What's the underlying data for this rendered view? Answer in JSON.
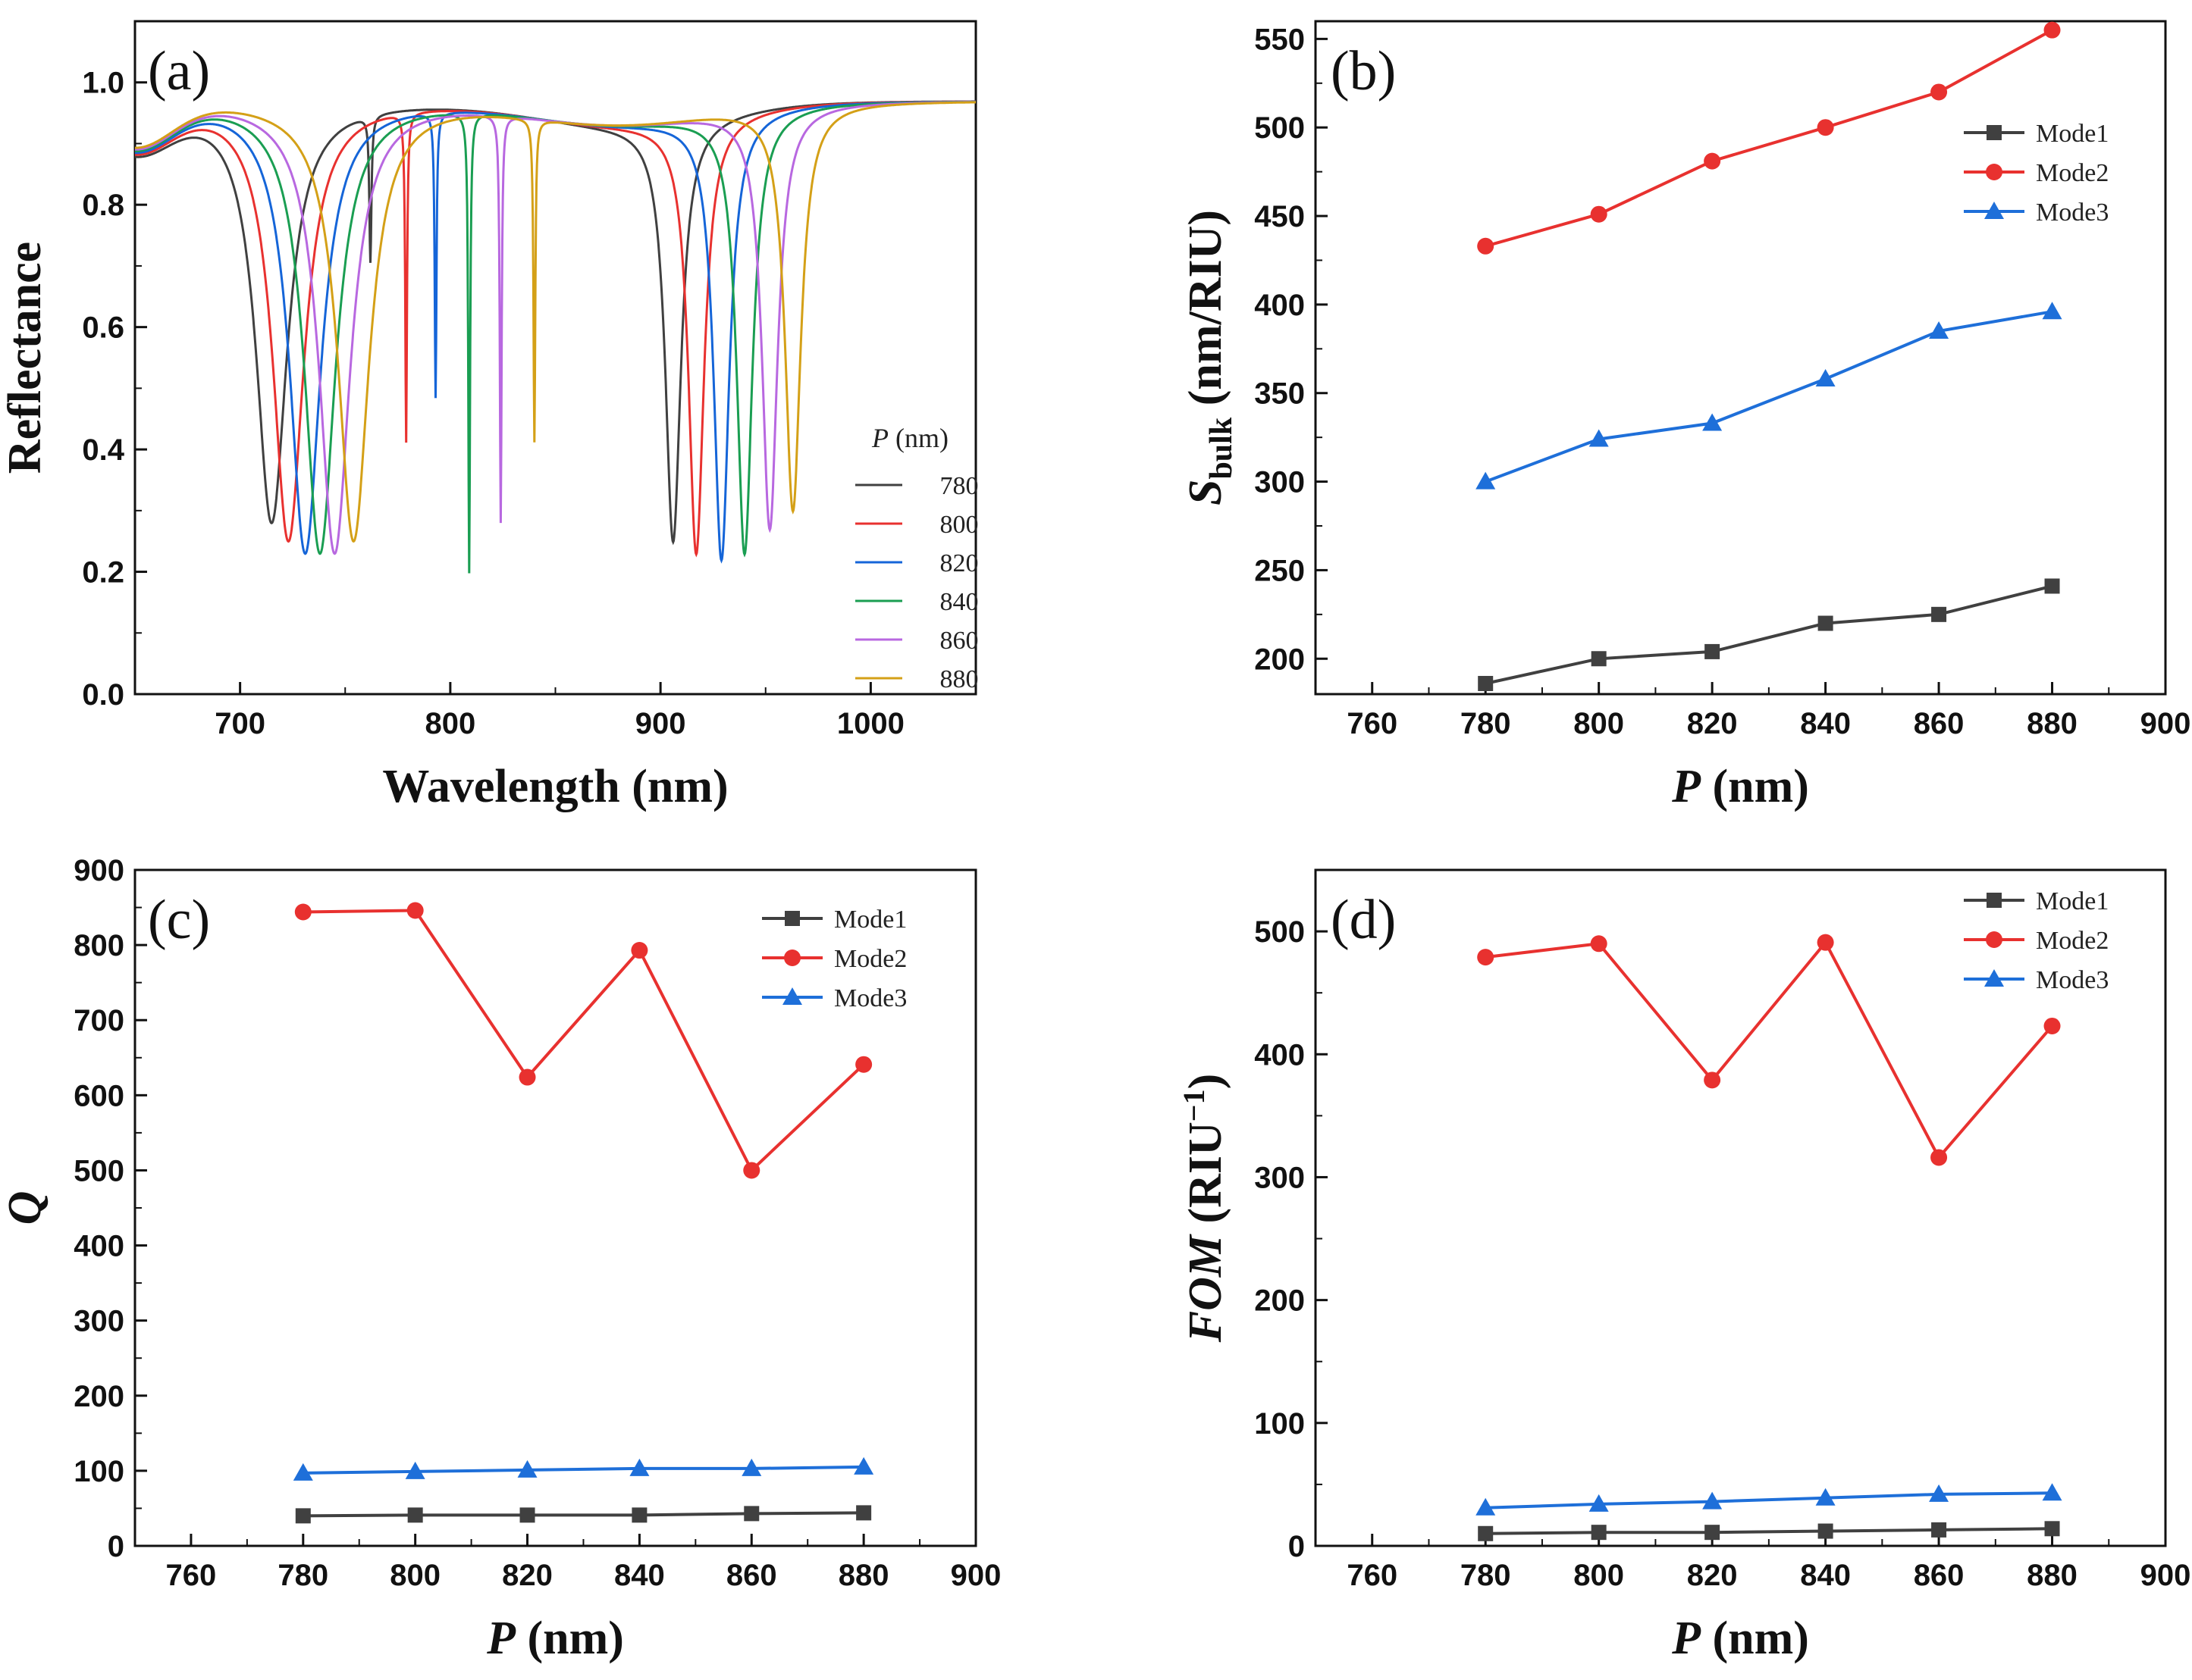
{
  "colors": {
    "s780": "#404040",
    "s800": "#e8312f",
    "s820": "#1565d8",
    "s840": "#1a9e52",
    "s860": "#b868e0",
    "s880": "#d4a017",
    "mode1": "#404040",
    "mode2": "#e8312f",
    "mode3": "#1e6fd9"
  },
  "chart_data": [
    {
      "panel": "(a)",
      "type": "line",
      "xlabel": "Wavelength (nm)",
      "ylabel": "Reflectance",
      "xlim": [
        650,
        1050
      ],
      "ylim": [
        0.0,
        1.1
      ],
      "xticks": [
        "700",
        "800",
        "900",
        "1000"
      ],
      "yticks": [
        "0.0",
        "0.2",
        "0.4",
        "0.6",
        "0.8",
        "1.0"
      ],
      "legend_title_italic": "P",
      "legend_title_rest": " (nm)",
      "series": [
        {
          "name": "780",
          "color_key": "s780",
          "dips": [
            [
              715,
              0.28,
              9
            ],
            [
              762,
              0.73,
              0.6
            ],
            [
              906,
              0.25,
              4.5
            ]
          ]
        },
        {
          "name": "800",
          "color_key": "s800",
          "dips": [
            [
              723,
              0.25,
              9
            ],
            [
              779,
              0.43,
              0.5
            ],
            [
              917,
              0.23,
              4.5
            ]
          ]
        },
        {
          "name": "820",
          "color_key": "s820",
          "dips": [
            [
              731,
              0.23,
              9
            ],
            [
              793,
              0.5,
              0.5
            ],
            [
              929,
              0.22,
              4.5
            ]
          ]
        },
        {
          "name": "840",
          "color_key": "s840",
          "dips": [
            [
              738,
              0.23,
              9
            ],
            [
              809,
              0.21,
              0.5
            ],
            [
              940,
              0.23,
              4.5
            ]
          ]
        },
        {
          "name": "860",
          "color_key": "s860",
          "dips": [
            [
              745,
              0.23,
              9
            ],
            [
              824,
              0.29,
              0.5
            ],
            [
              952,
              0.27,
              4.5
            ]
          ]
        },
        {
          "name": "880",
          "color_key": "s880",
          "dips": [
            [
              754,
              0.25,
              9
            ],
            [
              840,
              0.42,
              0.5
            ],
            [
              963,
              0.3,
              4.5
            ]
          ]
        }
      ]
    },
    {
      "panel": "(b)",
      "type": "line",
      "xlabel": "P (nm)",
      "ylabel": "Sbulk (nm/RIU)",
      "ylabel_main": "S",
      "ylabel_sub": "bulk",
      "ylabel_rest": " (nm/RIU)",
      "xlim": [
        750,
        900
      ],
      "ylim": [
        180,
        560
      ],
      "xticks": [
        "760",
        "780",
        "800",
        "820",
        "840",
        "860",
        "880",
        "900"
      ],
      "yticks": [
        "200",
        "250",
        "300",
        "350",
        "400",
        "450",
        "500",
        "550"
      ],
      "x": [
        780,
        800,
        820,
        840,
        860,
        880
      ],
      "series": [
        {
          "name": "Mode1",
          "marker": "square",
          "color_key": "mode1",
          "values": [
            186,
            200,
            204,
            220,
            225,
            241
          ]
        },
        {
          "name": "Mode2",
          "marker": "circle",
          "color_key": "mode2",
          "values": [
            433,
            451,
            481,
            500,
            520,
            555
          ]
        },
        {
          "name": "Mode3",
          "marker": "triangle",
          "color_key": "mode3",
          "values": [
            300,
            324,
            333,
            358,
            385,
            396
          ]
        }
      ]
    },
    {
      "panel": "(c)",
      "type": "line",
      "xlabel": "P (nm)",
      "ylabel": "Q",
      "xlim": [
        750,
        900
      ],
      "ylim": [
        0,
        900
      ],
      "xticks": [
        "760",
        "780",
        "800",
        "820",
        "840",
        "860",
        "880",
        "900"
      ],
      "yticks": [
        "0",
        "100",
        "200",
        "300",
        "400",
        "500",
        "600",
        "700",
        "800",
        "900"
      ],
      "x": [
        780,
        800,
        820,
        840,
        860,
        880
      ],
      "series": [
        {
          "name": "Mode1",
          "marker": "square",
          "color_key": "mode1",
          "values": [
            40,
            41,
            41,
            41,
            43,
            44
          ]
        },
        {
          "name": "Mode2",
          "marker": "circle",
          "color_key": "mode2",
          "values": [
            844,
            846,
            624,
            793,
            500,
            641
          ]
        },
        {
          "name": "Mode3",
          "marker": "triangle",
          "color_key": "mode3",
          "values": [
            97,
            99,
            101,
            103,
            103,
            105
          ]
        }
      ]
    },
    {
      "panel": "(d)",
      "type": "line",
      "xlabel": "P (nm)",
      "ylabel": "FOM (RIU⁻¹)",
      "ylabel_main": "FOM",
      "ylabel_rest": " (RIU",
      "ylabel_sup": "−1",
      "ylabel_close": ")",
      "xlim": [
        750,
        900
      ],
      "ylim": [
        0,
        550
      ],
      "xticks": [
        "760",
        "780",
        "800",
        "820",
        "840",
        "860",
        "880",
        "900"
      ],
      "yticks": [
        "0",
        "100",
        "200",
        "300",
        "400",
        "500"
      ],
      "x": [
        780,
        800,
        820,
        840,
        860,
        880
      ],
      "series": [
        {
          "name": "Mode1",
          "marker": "square",
          "color_key": "mode1",
          "values": [
            10,
            11,
            11,
            12,
            13,
            14
          ]
        },
        {
          "name": "Mode2",
          "marker": "circle",
          "color_key": "mode2",
          "values": [
            479,
            490,
            379,
            491,
            316,
            423
          ]
        },
        {
          "name": "Mode3",
          "marker": "triangle",
          "color_key": "mode3",
          "values": [
            31,
            34,
            36,
            39,
            42,
            43
          ]
        }
      ]
    }
  ]
}
